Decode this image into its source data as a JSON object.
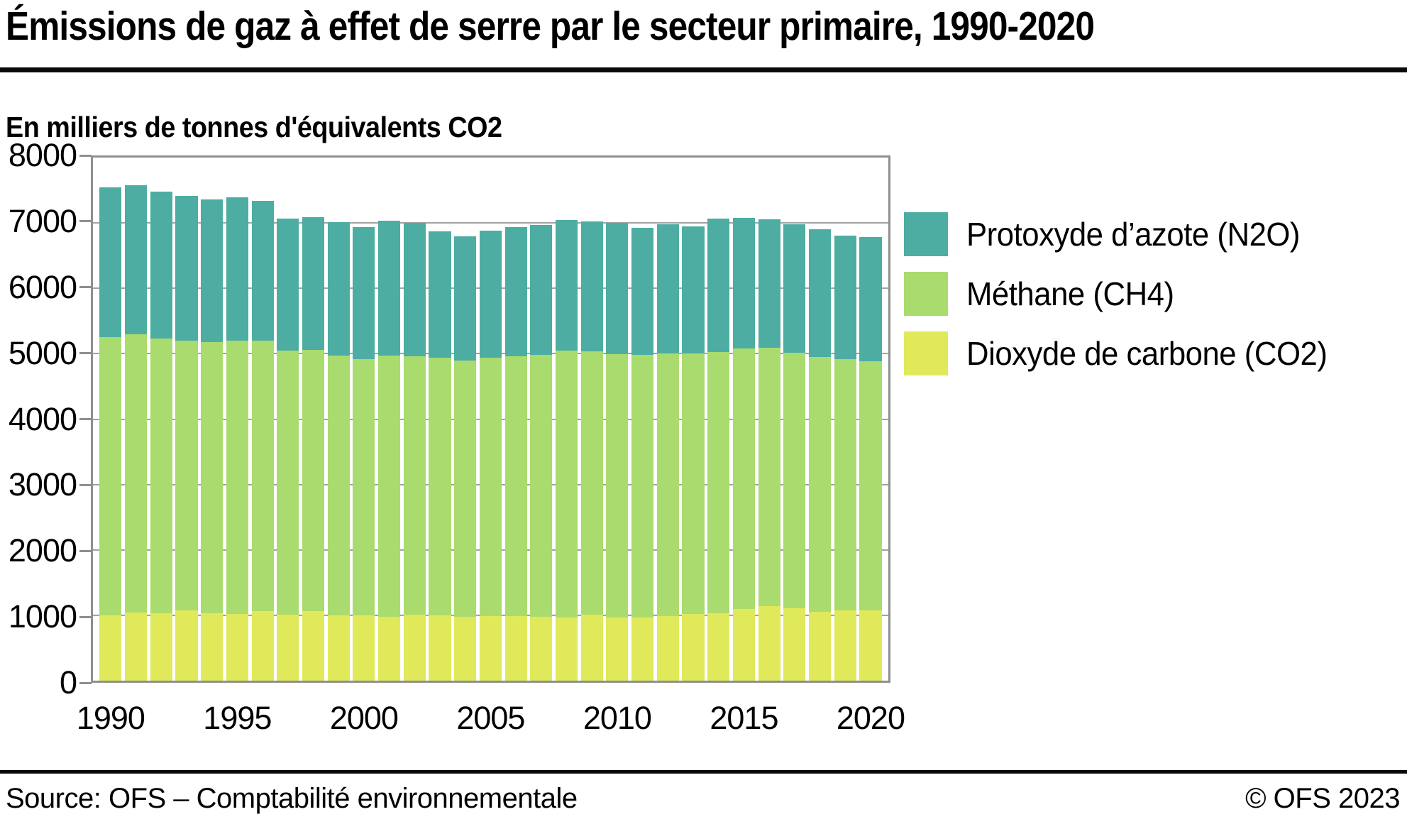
{
  "page": {
    "title": "Émissions de gaz à effet de serre par le secteur primaire, 1990-2020",
    "subtitle": "En milliers de tonnes d'équivalents CO2"
  },
  "footer": {
    "source": "Source: OFS – Comptabilité environnementale",
    "copyright": "© OFS 2023"
  },
  "legend": [
    {
      "label": "Protoxyde d’azote (N2O)",
      "series_key": "n2o",
      "color": "#4dada2"
    },
    {
      "label": "Méthane (CH4)",
      "series_key": "ch4",
      "color": "#aadb6e"
    },
    {
      "label": "Dioxyde de carbone (CO2)",
      "series_key": "co2",
      "color": "#e0e95a"
    }
  ],
  "chart_data": {
    "type": "bar",
    "stacked": true,
    "title": "Émissions de gaz à effet de serre par le secteur primaire, 1990-2020",
    "ylabel": "En milliers de tonnes d'équivalents CO2",
    "xlabel": "",
    "x": [
      1990,
      1991,
      1992,
      1993,
      1994,
      1995,
      1996,
      1997,
      1998,
      1999,
      2000,
      2001,
      2002,
      2003,
      2004,
      2005,
      2006,
      2007,
      2008,
      2009,
      2010,
      2011,
      2012,
      2013,
      2014,
      2015,
      2016,
      2017,
      2018,
      2019,
      2020
    ],
    "x_tick_labels": [
      "1990",
      "1995",
      "2000",
      "2005",
      "2010",
      "2015",
      "2020"
    ],
    "ylim": [
      0,
      8000
    ],
    "y_ticks": [
      0,
      1000,
      2000,
      3000,
      4000,
      5000,
      6000,
      7000,
      8000
    ],
    "grid": "horizontal",
    "legend_position": "right",
    "colors": {
      "n2o": "#4dada2",
      "ch4": "#aadb6e",
      "co2": "#e0e95a",
      "gridline": "#a2a2a2",
      "axis": "#8f8f8f",
      "rule": "#0a0a0a"
    },
    "series": [
      {
        "name": "Dioxyde de carbone (CO2)",
        "key": "co2",
        "color": "#e0e95a",
        "values": [
          1000,
          1045,
          1035,
          1070,
          1035,
          1025,
          1060,
          1015,
          1065,
          1000,
          1000,
          980,
          1005,
          1000,
          975,
          990,
          990,
          980,
          965,
          1005,
          970,
          970,
          990,
          1025,
          1035,
          1100,
          1135,
          1105,
          1050,
          1070,
          1080
        ]
      },
      {
        "name": "Méthane (CH4)",
        "key": "ch4",
        "color": "#aadb6e",
        "values": [
          4255,
          4255,
          4200,
          4125,
          4140,
          4180,
          4135,
          4030,
          3995,
          3970,
          3920,
          3995,
          3960,
          3940,
          3925,
          3945,
          3975,
          4000,
          4080,
          4030,
          4020,
          4010,
          4010,
          3980,
          3990,
          3985,
          3960,
          3910,
          3900,
          3845,
          3810
        ]
      },
      {
        "name": "Protoxyde d’azote (N2O)",
        "key": "n2o",
        "color": "#4dada2",
        "values": [
          2285,
          2280,
          2245,
          2220,
          2185,
          2185,
          2145,
          2025,
          2030,
          2040,
          2020,
          2055,
          2035,
          1935,
          1890,
          1945,
          1970,
          1985,
          2000,
          1985,
          2010,
          1950,
          1980,
          1940,
          2045,
          1995,
          1960,
          1965,
          1950,
          1895,
          1900
        ]
      }
    ]
  }
}
